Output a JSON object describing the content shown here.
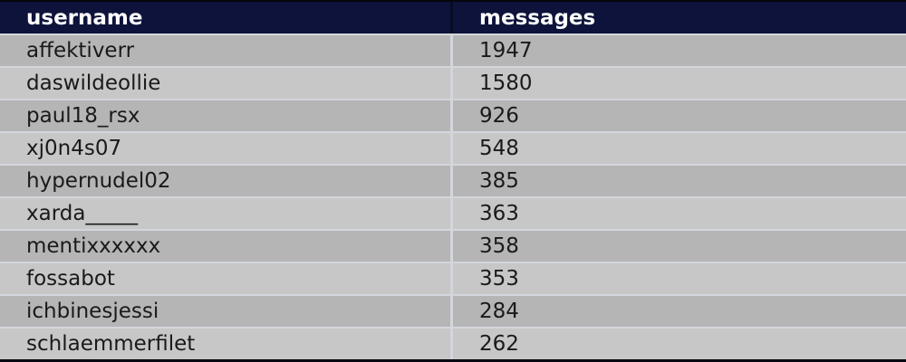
{
  "table": {
    "columns": [
      {
        "key": "username",
        "label": "username"
      },
      {
        "key": "messages",
        "label": "messages"
      }
    ],
    "rows": [
      {
        "username": "affektiverr",
        "messages": "1947"
      },
      {
        "username": "daswildeollie",
        "messages": "1580"
      },
      {
        "username": "paul18_rsx",
        "messages": "926"
      },
      {
        "username": "xj0n4s07",
        "messages": "548"
      },
      {
        "username": "hypernudel02",
        "messages": "385"
      },
      {
        "username": "xarda_____",
        "messages": "363"
      },
      {
        "username": "mentixxxxxx",
        "messages": "358"
      },
      {
        "username": "fossabot",
        "messages": "353"
      },
      {
        "username": "ichbinesjessi",
        "messages": "284"
      },
      {
        "username": "schlaemmerfilet",
        "messages": "262"
      }
    ]
  },
  "colors": {
    "header_background": "#0d133a",
    "header_text": "#ffffff",
    "row_odd": "#b5b5b5",
    "row_even": "#c7c7c7",
    "row_separator": "#d3d6db",
    "body_text": "#1a1a1a",
    "top_border": "#05070d",
    "bottom_border": "#07080f"
  },
  "chart_data": {
    "type": "table",
    "title": "",
    "columns": [
      "username",
      "messages"
    ],
    "rows": [
      [
        "affektiverr",
        1947
      ],
      [
        "daswildeollie",
        1580
      ],
      [
        "paul18_rsx",
        926
      ],
      [
        "xj0n4s07",
        548
      ],
      [
        "hypernudel02",
        385
      ],
      [
        "xarda_____",
        363
      ],
      [
        "mentixxxxxx",
        358
      ],
      [
        "fossabot",
        353
      ],
      [
        "ichbinesjessi",
        284
      ],
      [
        "schlaemmerfilet",
        262
      ]
    ]
  }
}
